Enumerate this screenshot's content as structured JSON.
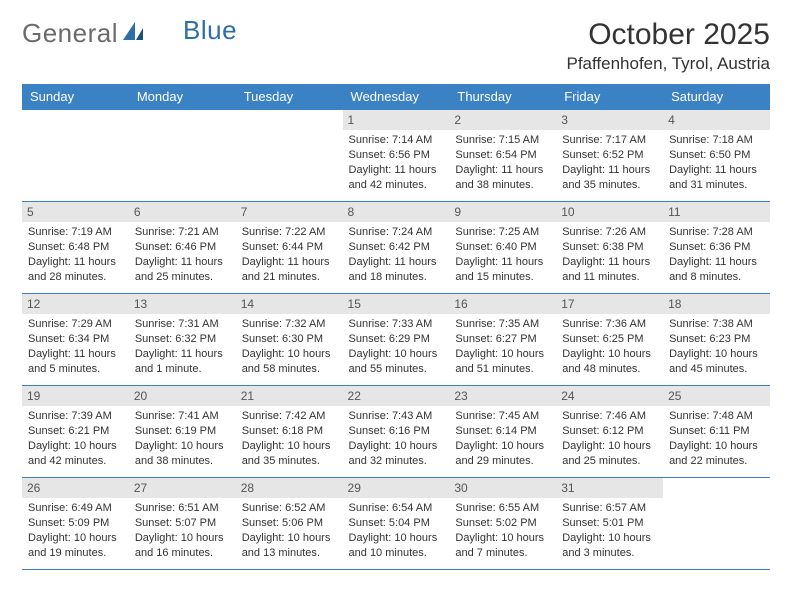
{
  "logo": {
    "text1": "General",
    "text2": "Blue"
  },
  "title": "October 2025",
  "location": "Pfaffenhofen, Tyrol, Austria",
  "colors": {
    "header_bg": "#3b82c4",
    "header_fg": "#ffffff",
    "daynum_bg": "#e6e6e6",
    "border": "#3b82c4",
    "text": "#333333",
    "logo_gray": "#6b6b6b",
    "logo_blue": "#2f6fa8",
    "background": "#ffffff"
  },
  "typography": {
    "title_fontsize": 30,
    "location_fontsize": 17,
    "logo_fontsize": 26,
    "dayheader_fontsize": 13,
    "cell_fontsize": 11,
    "daynum_fontsize": 12
  },
  "day_headers": [
    "Sunday",
    "Monday",
    "Tuesday",
    "Wednesday",
    "Thursday",
    "Friday",
    "Saturday"
  ],
  "weeks": [
    [
      null,
      null,
      null,
      {
        "n": "1",
        "sr": "Sunrise: 7:14 AM",
        "ss": "Sunset: 6:56 PM",
        "dl": "Daylight: 11 hours and 42 minutes."
      },
      {
        "n": "2",
        "sr": "Sunrise: 7:15 AM",
        "ss": "Sunset: 6:54 PM",
        "dl": "Daylight: 11 hours and 38 minutes."
      },
      {
        "n": "3",
        "sr": "Sunrise: 7:17 AM",
        "ss": "Sunset: 6:52 PM",
        "dl": "Daylight: 11 hours and 35 minutes."
      },
      {
        "n": "4",
        "sr": "Sunrise: 7:18 AM",
        "ss": "Sunset: 6:50 PM",
        "dl": "Daylight: 11 hours and 31 minutes."
      }
    ],
    [
      {
        "n": "5",
        "sr": "Sunrise: 7:19 AM",
        "ss": "Sunset: 6:48 PM",
        "dl": "Daylight: 11 hours and 28 minutes."
      },
      {
        "n": "6",
        "sr": "Sunrise: 7:21 AM",
        "ss": "Sunset: 6:46 PM",
        "dl": "Daylight: 11 hours and 25 minutes."
      },
      {
        "n": "7",
        "sr": "Sunrise: 7:22 AM",
        "ss": "Sunset: 6:44 PM",
        "dl": "Daylight: 11 hours and 21 minutes."
      },
      {
        "n": "8",
        "sr": "Sunrise: 7:24 AM",
        "ss": "Sunset: 6:42 PM",
        "dl": "Daylight: 11 hours and 18 minutes."
      },
      {
        "n": "9",
        "sr": "Sunrise: 7:25 AM",
        "ss": "Sunset: 6:40 PM",
        "dl": "Daylight: 11 hours and 15 minutes."
      },
      {
        "n": "10",
        "sr": "Sunrise: 7:26 AM",
        "ss": "Sunset: 6:38 PM",
        "dl": "Daylight: 11 hours and 11 minutes."
      },
      {
        "n": "11",
        "sr": "Sunrise: 7:28 AM",
        "ss": "Sunset: 6:36 PM",
        "dl": "Daylight: 11 hours and 8 minutes."
      }
    ],
    [
      {
        "n": "12",
        "sr": "Sunrise: 7:29 AM",
        "ss": "Sunset: 6:34 PM",
        "dl": "Daylight: 11 hours and 5 minutes."
      },
      {
        "n": "13",
        "sr": "Sunrise: 7:31 AM",
        "ss": "Sunset: 6:32 PM",
        "dl": "Daylight: 11 hours and 1 minute."
      },
      {
        "n": "14",
        "sr": "Sunrise: 7:32 AM",
        "ss": "Sunset: 6:30 PM",
        "dl": "Daylight: 10 hours and 58 minutes."
      },
      {
        "n": "15",
        "sr": "Sunrise: 7:33 AM",
        "ss": "Sunset: 6:29 PM",
        "dl": "Daylight: 10 hours and 55 minutes."
      },
      {
        "n": "16",
        "sr": "Sunrise: 7:35 AM",
        "ss": "Sunset: 6:27 PM",
        "dl": "Daylight: 10 hours and 51 minutes."
      },
      {
        "n": "17",
        "sr": "Sunrise: 7:36 AM",
        "ss": "Sunset: 6:25 PM",
        "dl": "Daylight: 10 hours and 48 minutes."
      },
      {
        "n": "18",
        "sr": "Sunrise: 7:38 AM",
        "ss": "Sunset: 6:23 PM",
        "dl": "Daylight: 10 hours and 45 minutes."
      }
    ],
    [
      {
        "n": "19",
        "sr": "Sunrise: 7:39 AM",
        "ss": "Sunset: 6:21 PM",
        "dl": "Daylight: 10 hours and 42 minutes."
      },
      {
        "n": "20",
        "sr": "Sunrise: 7:41 AM",
        "ss": "Sunset: 6:19 PM",
        "dl": "Daylight: 10 hours and 38 minutes."
      },
      {
        "n": "21",
        "sr": "Sunrise: 7:42 AM",
        "ss": "Sunset: 6:18 PM",
        "dl": "Daylight: 10 hours and 35 minutes."
      },
      {
        "n": "22",
        "sr": "Sunrise: 7:43 AM",
        "ss": "Sunset: 6:16 PM",
        "dl": "Daylight: 10 hours and 32 minutes."
      },
      {
        "n": "23",
        "sr": "Sunrise: 7:45 AM",
        "ss": "Sunset: 6:14 PM",
        "dl": "Daylight: 10 hours and 29 minutes."
      },
      {
        "n": "24",
        "sr": "Sunrise: 7:46 AM",
        "ss": "Sunset: 6:12 PM",
        "dl": "Daylight: 10 hours and 25 minutes."
      },
      {
        "n": "25",
        "sr": "Sunrise: 7:48 AM",
        "ss": "Sunset: 6:11 PM",
        "dl": "Daylight: 10 hours and 22 minutes."
      }
    ],
    [
      {
        "n": "26",
        "sr": "Sunrise: 6:49 AM",
        "ss": "Sunset: 5:09 PM",
        "dl": "Daylight: 10 hours and 19 minutes."
      },
      {
        "n": "27",
        "sr": "Sunrise: 6:51 AM",
        "ss": "Sunset: 5:07 PM",
        "dl": "Daylight: 10 hours and 16 minutes."
      },
      {
        "n": "28",
        "sr": "Sunrise: 6:52 AM",
        "ss": "Sunset: 5:06 PM",
        "dl": "Daylight: 10 hours and 13 minutes."
      },
      {
        "n": "29",
        "sr": "Sunrise: 6:54 AM",
        "ss": "Sunset: 5:04 PM",
        "dl": "Daylight: 10 hours and 10 minutes."
      },
      {
        "n": "30",
        "sr": "Sunrise: 6:55 AM",
        "ss": "Sunset: 5:02 PM",
        "dl": "Daylight: 10 hours and 7 minutes."
      },
      {
        "n": "31",
        "sr": "Sunrise: 6:57 AM",
        "ss": "Sunset: 5:01 PM",
        "dl": "Daylight: 10 hours and 3 minutes."
      },
      null
    ]
  ]
}
